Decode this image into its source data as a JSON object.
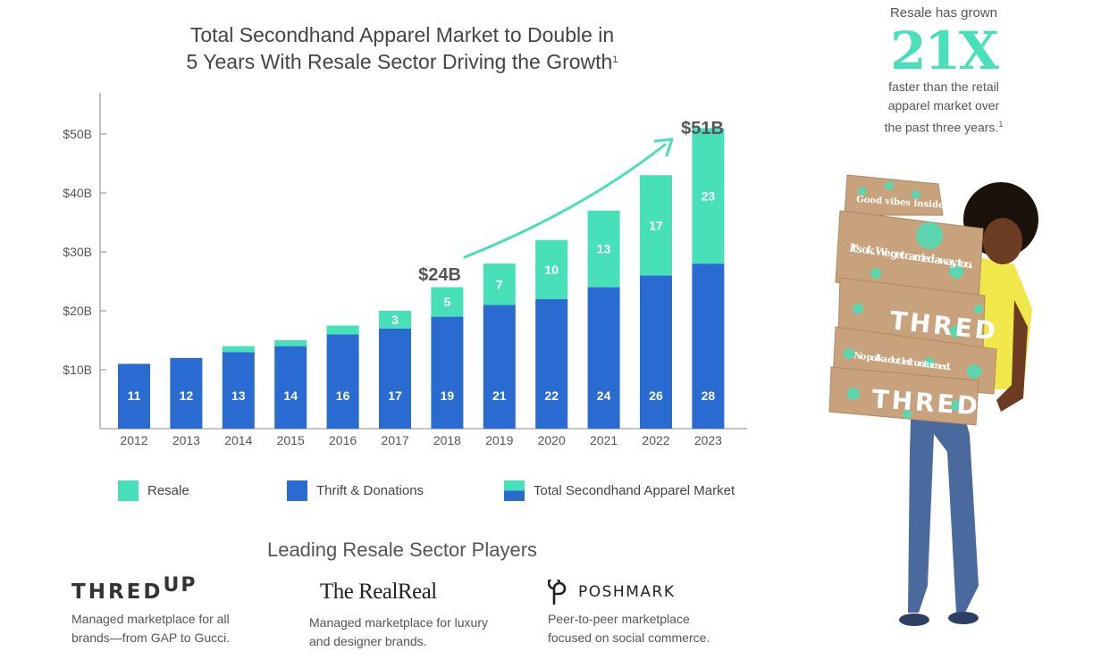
{
  "title": {
    "line1": "Total Secondhand Apparel Market to Double in",
    "line2": "5 Years With Resale Sector Driving the Growth",
    "footnote": "1"
  },
  "chart_data": {
    "type": "bar",
    "stacked": true,
    "categories": [
      "2012",
      "2013",
      "2014",
      "2015",
      "2016",
      "2017",
      "2018",
      "2019",
      "2020",
      "2021",
      "2022",
      "2023"
    ],
    "series": [
      {
        "name": "Thrift & Donations",
        "color": "#2a6bd1",
        "values": [
          11,
          12,
          13,
          14,
          16,
          17,
          19,
          21,
          22,
          24,
          26,
          28
        ]
      },
      {
        "name": "Resale",
        "color": "#48e0b9",
        "values": [
          0,
          0,
          1,
          1,
          1.5,
          3,
          5,
          7,
          10,
          13,
          17,
          23
        ]
      }
    ],
    "segment_labels": {
      "thrift": [
        "11",
        "12",
        "13",
        "14",
        "16",
        "17",
        "19",
        "21",
        "22",
        "24",
        "26",
        "28"
      ],
      "resale": [
        "",
        "",
        "",
        "",
        "",
        "3",
        "5",
        "7",
        "10",
        "13",
        "17",
        "23"
      ]
    },
    "yticks": [
      "$10B",
      "$20B",
      "$30B",
      "$40B",
      "$50B"
    ],
    "ytick_values": [
      10,
      20,
      30,
      40,
      50
    ],
    "ylim": [
      0,
      57
    ],
    "annotations": {
      "start": "$24B",
      "end": "$51B"
    },
    "legend": [
      "Resale",
      "Thrift & Donations",
      "Total Secondhand Apparel Market"
    ],
    "legend_position": "bottom"
  },
  "legend": {
    "resale": "Resale",
    "thrift": "Thrift & Donations",
    "total": "Total Secondhand Apparel Market"
  },
  "players": {
    "title": "Leading Resale Sector Players",
    "items": [
      {
        "logo_main": "THRED",
        "logo_sup": "UP",
        "desc_line1": "Managed marketplace for all",
        "desc_line2": "brands—from GAP to Gucci."
      },
      {
        "logo": "The RealReal",
        "desc_line1": "Managed marketplace for luxury",
        "desc_line2": "and designer brands."
      },
      {
        "logo": "POSHMARK",
        "desc_line1": "Peer-to-peer marketplace",
        "desc_line2": "focused on social commerce."
      }
    ]
  },
  "side": {
    "top": "Resale has grown",
    "big": "21X",
    "line1": "faster than the retail",
    "line2": "apparel market over",
    "line3": "the past three years.",
    "footnote": "1"
  },
  "photo": {
    "box_texts": [
      "Good vibes inside.",
      "It's ok. We get carried away, too.",
      "THRED",
      "No polka dot left unturned.",
      "THRED"
    ]
  },
  "colors": {
    "resale": "#48e0b9",
    "thrift": "#2a6bd1",
    "accent": "#48e0b9"
  }
}
